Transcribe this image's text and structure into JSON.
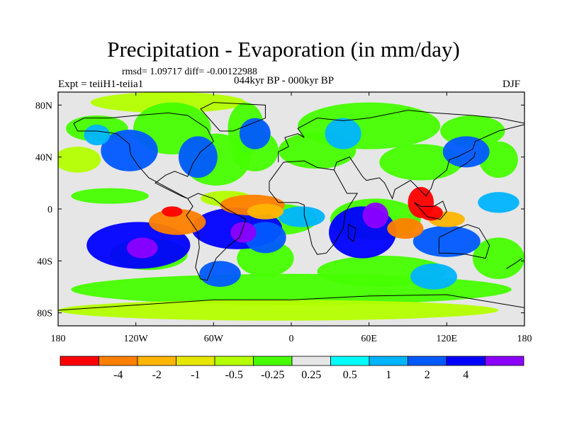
{
  "title": "Precipitation - Evaporation (in mm/day)",
  "stats": "rmsd= 1.09717 diff= -0.00122988",
  "experiment": "Expt = teiiH1-teiia1",
  "period": "044kyr BP - 000kyr BP",
  "season": "DJF",
  "map": {
    "background_color": "#e6e6e6",
    "lon_range": [
      -180,
      180
    ],
    "lat_range": [
      -90,
      90
    ],
    "x_ticks": [
      {
        "value": -180,
        "label": "180"
      },
      {
        "value": -120,
        "label": "120W"
      },
      {
        "value": -60,
        "label": "60W"
      },
      {
        "value": 0,
        "label": "0"
      },
      {
        "value": 60,
        "label": "60E"
      },
      {
        "value": 120,
        "label": "120E"
      },
      {
        "value": 180,
        "label": "180"
      }
    ],
    "y_ticks": [
      {
        "value": 80,
        "label": "80N"
      },
      {
        "value": 40,
        "label": "40N"
      },
      {
        "value": 0,
        "label": "0"
      },
      {
        "value": -40,
        "label": "40S"
      },
      {
        "value": -80,
        "label": "80S"
      }
    ]
  },
  "colorbar": {
    "colors": [
      "#ff0000",
      "#ff8000",
      "#ffb400",
      "#e6e600",
      "#b4ff00",
      "#46ff00",
      "#e6e6e6",
      "#00ffff",
      "#00b4ff",
      "#005aff",
      "#0000ff",
      "#8c00ff"
    ],
    "labels": [
      "-4",
      "-2",
      "-1",
      "-0.5",
      "-0.25",
      "0.25",
      "0.5",
      "1",
      "2",
      "4"
    ]
  }
}
